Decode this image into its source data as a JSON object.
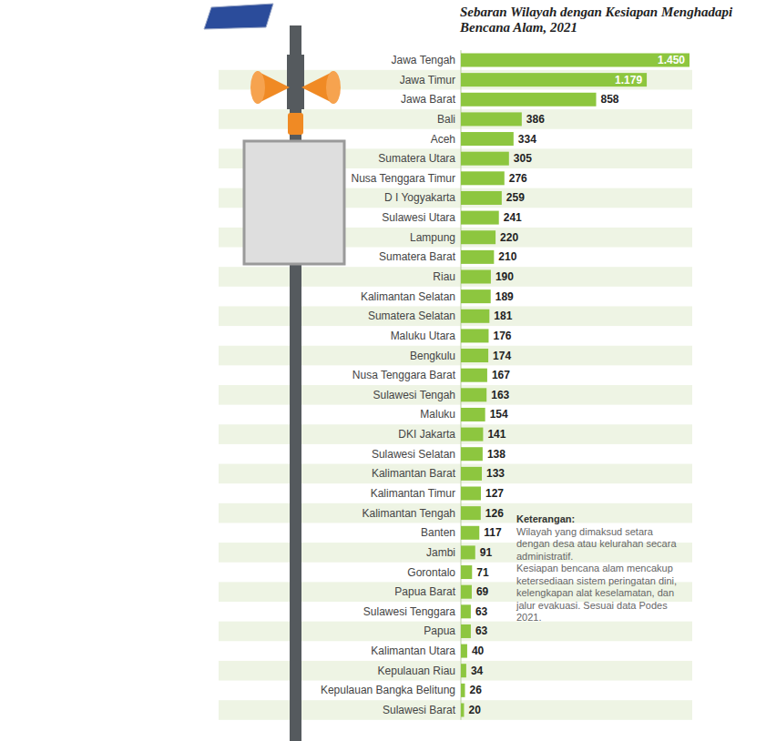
{
  "chart_data": {
    "type": "bar",
    "orientation": "horizontal",
    "title": "Sebaran Wilayah dengan Kesiapan Menghadapi Bencana Alam, 2021",
    "categories": [
      "Jawa Tengah",
      "Jawa Timur",
      "Jawa Barat",
      "Bali",
      "Aceh",
      "Sumatera Utara",
      "Nusa Tenggara Timur",
      "D I Yogyakarta",
      "Sulawesi Utara",
      "Lampung",
      "Sumatera Barat",
      "Riau",
      "Kalimantan Selatan",
      "Sumatera Selatan",
      "Maluku Utara",
      "Bengkulu",
      "Nusa Tenggara Barat",
      "Sulawesi Tengah",
      "Maluku",
      "DKI Jakarta",
      "Sulawesi Selatan",
      "Kalimantan Barat",
      "Kalimantan Timur",
      "Kalimantan Tengah",
      "Banten",
      "Jambi",
      "Gorontalo",
      "Papua Barat",
      "Sulawesi Tenggara",
      "Papua",
      "Kalimantan Utara",
      "Kepulauan Riau",
      "Kepulauan Bangka Belitung",
      "Sulawesi Barat"
    ],
    "values": [
      1450,
      1179,
      858,
      386,
      334,
      305,
      276,
      259,
      241,
      220,
      210,
      190,
      189,
      181,
      176,
      174,
      167,
      163,
      154,
      141,
      138,
      133,
      127,
      126,
      117,
      91,
      71,
      69,
      63,
      63,
      40,
      34,
      26,
      20
    ],
    "value_labels": [
      "1.450",
      "1.179",
      "858",
      "386",
      "334",
      "305",
      "276",
      "259",
      "241",
      "220",
      "210",
      "190",
      "189",
      "181",
      "176",
      "174",
      "167",
      "163",
      "154",
      "141",
      "138",
      "133",
      "127",
      "126",
      "117",
      "91",
      "71",
      "69",
      "63",
      "63",
      "40",
      "34",
      "26",
      "20"
    ],
    "color": "#8dc63f",
    "xlim": [
      0,
      1450
    ],
    "data_labels": true,
    "tick_labels": "y",
    "grid": false,
    "annotations": [
      "Keterangan:",
      "Wilayah yang dimaksud setara dengan desa atau kelurahan secara administratif.",
      "Kesiapan bencana alam mencakup ketersediaan sistem peringatan dini, kelengkapan alat keselamatan, dan jalur evakuasi. Sesuai data Podes 2021."
    ]
  }
}
